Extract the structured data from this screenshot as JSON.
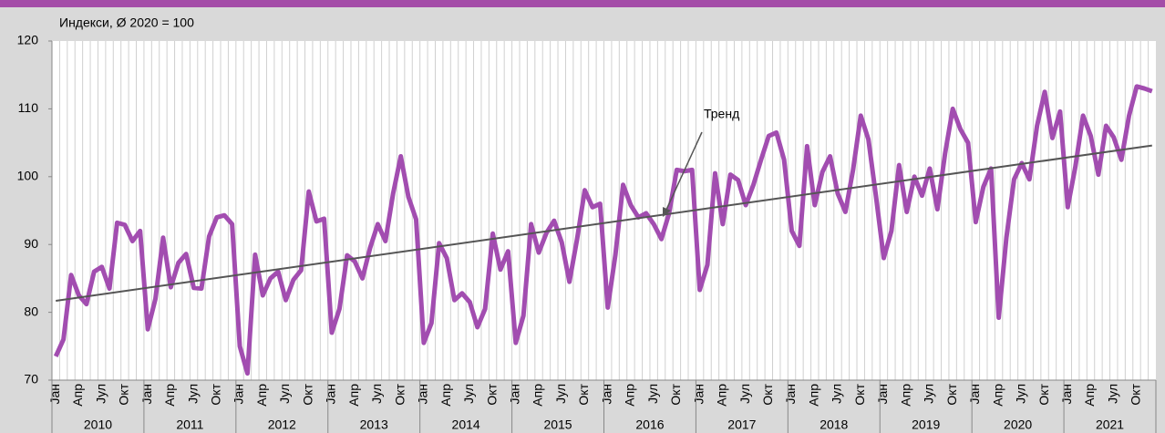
{
  "chart_data": {
    "type": "line",
    "subtitle": "Индекси, Ø 2020 = 100",
    "categories": [
      "Јан",
      null,
      null,
      "Апр",
      null,
      null,
      "Јул",
      null,
      null,
      "Окт",
      null,
      null,
      "Јан",
      null,
      null,
      "Апр",
      null,
      null,
      "Јул",
      null,
      null,
      "Окт",
      null,
      null,
      "Јан",
      null,
      null,
      "Апр",
      null,
      null,
      "Јул",
      null,
      null,
      "Окт",
      null,
      null,
      "Јан",
      null,
      null,
      "Апр",
      null,
      null,
      "Јул",
      null,
      null,
      "Окт",
      null,
      null,
      "Јан",
      null,
      null,
      "Апр",
      null,
      null,
      "Јул",
      null,
      null,
      "Окт",
      null,
      null,
      "Јан",
      null,
      null,
      "Апр",
      null,
      null,
      "Јул",
      null,
      null,
      "Окт",
      null,
      null,
      "Јан",
      null,
      null,
      "Апр",
      null,
      null,
      "Јул",
      null,
      null,
      "Окт",
      null,
      null,
      "Јан",
      null,
      null,
      "Апр",
      null,
      null,
      "Јул",
      null,
      null,
      "Окт",
      null,
      null,
      "Јан",
      null,
      null,
      "Апр",
      null,
      null,
      "Јул",
      null,
      null,
      "Окт",
      null,
      null,
      "Јан",
      null,
      null,
      "Апр",
      null,
      null,
      "Јул",
      null,
      null,
      "Окт",
      null,
      null,
      "Јан",
      null,
      null,
      "Апр",
      null,
      null,
      "Јул",
      null,
      null,
      "Окт",
      null,
      null,
      "Јан",
      null,
      null,
      "Апр",
      null,
      null,
      "Јул",
      null,
      null,
      "Окт",
      null,
      null
    ],
    "years": [
      "2010",
      "2011",
      "2012",
      "2013",
      "2014",
      "2015",
      "2016",
      "2017",
      "2018",
      "2019",
      "2020",
      "2021"
    ],
    "series": [
      {
        "color": "#a24db0",
        "values": [
          73.5,
          76,
          85.5,
          82.5,
          81.2,
          86,
          86.7,
          83.5,
          93.2,
          92.9,
          90.5,
          92,
          77.5,
          82,
          91,
          83.7,
          87.3,
          88.6,
          83.6,
          83.5,
          91.2,
          94,
          94.3,
          93,
          75,
          71,
          88.5,
          82.5,
          85,
          86,
          81.8,
          84.8,
          86.2,
          97.8,
          93.4,
          93.8,
          77,
          80.5,
          88.4,
          87.5,
          85,
          89.5,
          93,
          90.5,
          97.5,
          103,
          97,
          93.7,
          75.5,
          78.4,
          90.2,
          88,
          81.8,
          82.8,
          81.5,
          77.8,
          80.5,
          91.6,
          86.3,
          89,
          75.5,
          79.5,
          93,
          88.8,
          91.7,
          93.5,
          90.3,
          84.5,
          90.8,
          98,
          95.5,
          96,
          80.7,
          88.5,
          98.8,
          95.8,
          94,
          94.6,
          93,
          90.8,
          94.6,
          101,
          100.8,
          101,
          83.3,
          87,
          100.5,
          93,
          100.3,
          99.5,
          95.8,
          98.8,
          102.5,
          106,
          106.5,
          102.5,
          92,
          89.8,
          104.5,
          95.8,
          100.7,
          103,
          97.5,
          94.8,
          101,
          109,
          105.5,
          97,
          88,
          92,
          101.7,
          94.8,
          100,
          97.2,
          101.2,
          95.2,
          103.4,
          110,
          107,
          105,
          93.3,
          98.5,
          101.2,
          79.2,
          91,
          99.6,
          102,
          99.6,
          107.5,
          112.5,
          105.7,
          109.6,
          95.5,
          101.5,
          109,
          106,
          100.3,
          107.5,
          105.8,
          102.5,
          109,
          113.3,
          113,
          112.6
        ]
      }
    ],
    "trend": {
      "label": "Тренд",
      "color": "#555555",
      "start": 81.7,
      "end": 104.6
    },
    "ylim": [
      70,
      120
    ],
    "yticks": [
      70,
      80,
      90,
      100,
      110,
      120
    ],
    "grid": true
  }
}
